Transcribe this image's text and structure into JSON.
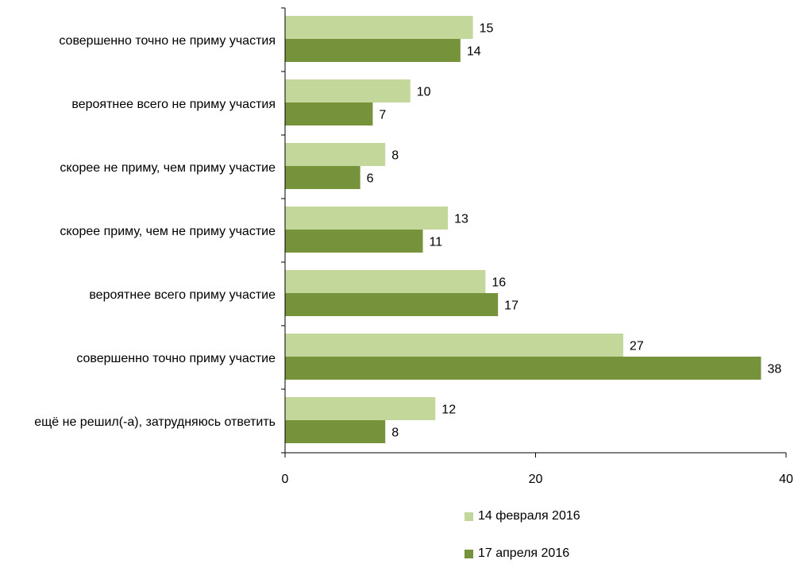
{
  "chart_data": {
    "type": "bar",
    "orientation": "horizontal",
    "categories": [
      "совершенно точно не приму участия",
      "вероятнее всего не приму участия",
      "скорее не приму, чем приму участие",
      "скорее приму, чем не приму участие",
      "вероятнее всего приму участие",
      "совершенно точно приму участие",
      "ещё не решил(-а), затрудняюсь ответить"
    ],
    "series": [
      {
        "name": "14 февраля 2016",
        "color": "#c4d79b",
        "values": [
          15,
          10,
          8,
          13,
          16,
          27,
          12
        ]
      },
      {
        "name": "17 апреля 2016",
        "color": "#76933c",
        "values": [
          14,
          7,
          6,
          11,
          17,
          38,
          8
        ]
      }
    ],
    "xlim": [
      0,
      40
    ],
    "xticks": [
      "0",
      "20",
      "40"
    ],
    "grid": false,
    "legend": "bottom"
  }
}
